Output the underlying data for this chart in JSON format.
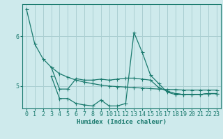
{
  "xlabel": "Humidex (Indice chaleur)",
  "xlim": [
    -0.5,
    23.5
  ],
  "ylim": [
    4.55,
    6.65
  ],
  "yticks": [
    5,
    6
  ],
  "xticks": [
    0,
    1,
    2,
    3,
    4,
    5,
    6,
    7,
    8,
    9,
    10,
    11,
    12,
    13,
    14,
    15,
    16,
    17,
    18,
    19,
    20,
    21,
    22,
    23
  ],
  "bg_color": "#ceeaec",
  "grid_color": "#aacfd2",
  "line_color": "#1a7a6e",
  "series": [
    [
      6.55,
      5.85,
      5.55,
      5.38,
      5.25,
      5.18,
      5.12,
      5.08,
      5.05,
      5.02,
      5.0,
      4.99,
      4.98,
      4.97,
      4.96,
      4.95,
      4.94,
      4.93,
      4.93,
      4.92,
      4.92,
      4.92,
      4.92,
      4.92
    ],
    [
      null,
      null,
      null,
      5.38,
      4.94,
      4.94,
      5.15,
      5.12,
      5.12,
      5.14,
      5.12,
      5.14,
      5.16,
      5.16,
      5.14,
      5.12,
      4.97,
      4.9,
      4.85,
      4.83,
      4.83,
      4.83,
      4.85,
      4.85
    ],
    [
      null,
      null,
      null,
      null,
      null,
      null,
      null,
      null,
      null,
      null,
      null,
      null,
      null,
      null,
      null,
      null,
      null,
      null,
      4.85,
      4.83,
      4.83,
      4.83,
      4.85,
      4.85
    ],
    [
      null,
      null,
      null,
      5.2,
      4.75,
      4.75,
      4.65,
      4.62,
      4.6,
      4.72,
      4.6,
      4.6,
      4.65,
      6.08,
      5.68,
      5.22,
      5.05,
      4.88,
      4.83,
      4.83,
      4.83,
      4.83,
      4.85,
      4.85
    ]
  ]
}
